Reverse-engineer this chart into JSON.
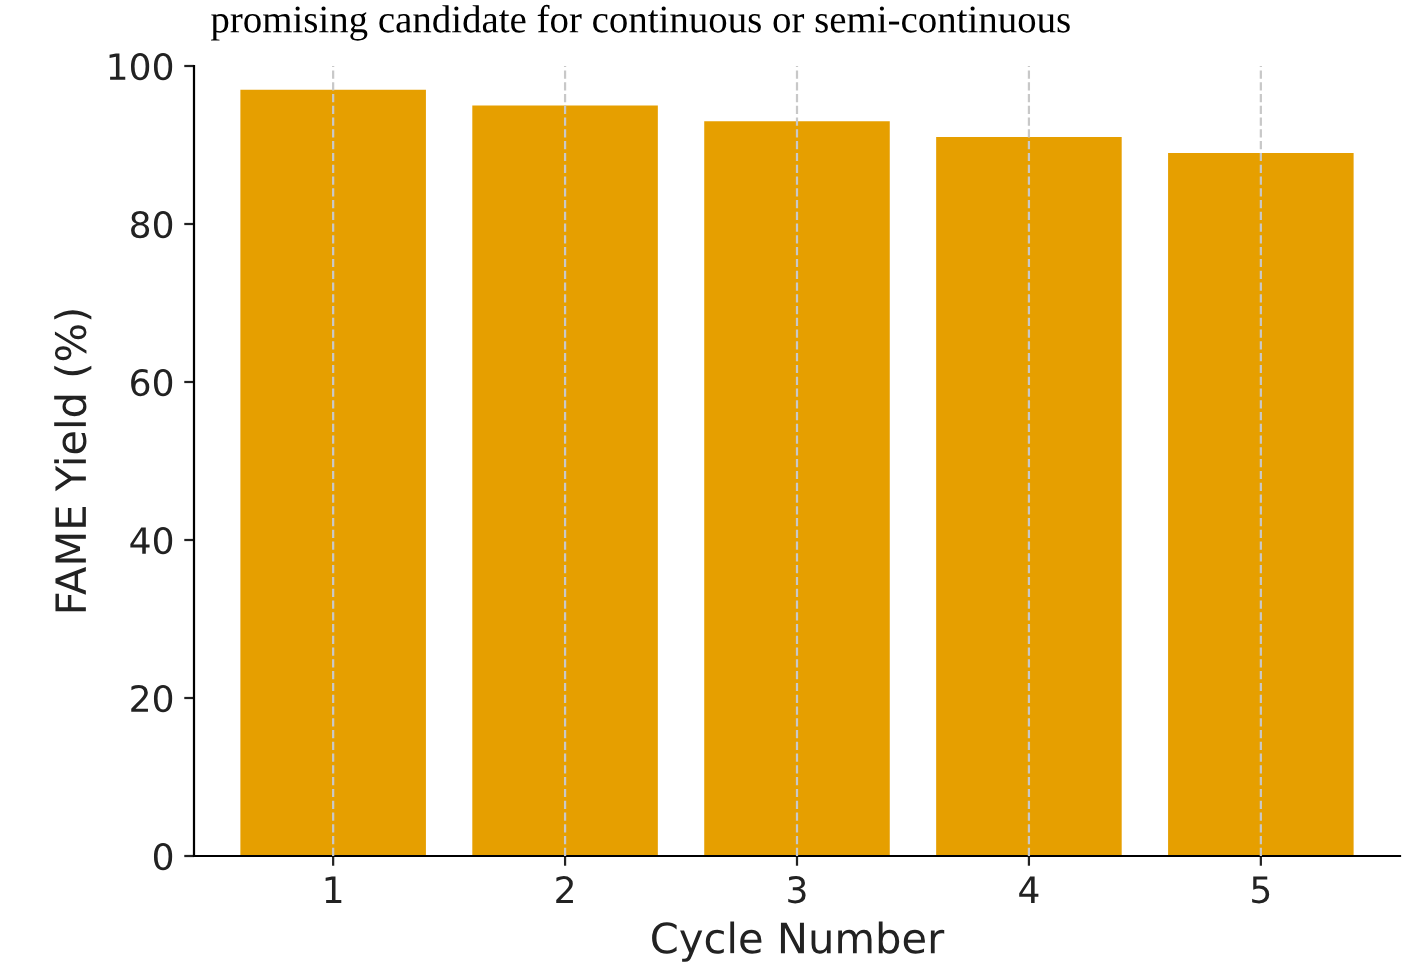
{
  "chart_data": {
    "type": "bar",
    "categories": [
      "1",
      "2",
      "3",
      "4",
      "5"
    ],
    "values": [
      97,
      95,
      93,
      91,
      89
    ],
    "color": "#e69f00",
    "xlabel": "Cycle Number",
    "ylabel": "FAME Yield (%)",
    "ylim": [
      0,
      100
    ],
    "yticks": [
      0,
      20,
      40,
      60,
      80,
      100
    ],
    "grid": "x",
    "annotations": [
      "promising candidate for continuous or semi-continuous"
    ]
  }
}
